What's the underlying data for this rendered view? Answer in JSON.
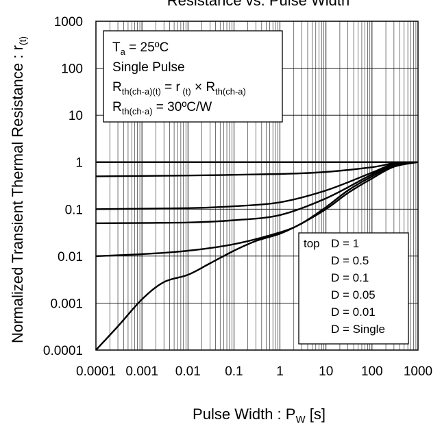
{
  "chart_data": {
    "type": "line",
    "title": "Resistance vs. Pulse Width",
    "xlabel": "Pulse Width : P",
    "xlabel_sub": "W",
    "xlabel_unit": " [s]",
    "ylabel": "Normalized Transient Thermal Resistance : r",
    "ylabel_sub": "(t)",
    "x_scale": "log",
    "y_scale": "log",
    "xlim": [
      0.0001,
      1000
    ],
    "ylim": [
      0.0001,
      1000
    ],
    "grid": "minor log grid",
    "x_tick_labels": [
      "0.0001",
      "0.001",
      "0.01",
      "0.1",
      "1",
      "10",
      "100",
      "1000"
    ],
    "x_tick_values": [
      0.0001,
      0.001,
      0.01,
      0.1,
      1,
      10,
      100,
      1000
    ],
    "y_tick_labels": [
      "0.0001",
      "0.001",
      "0.01",
      "0.1",
      "1",
      "10",
      "100",
      "1000"
    ],
    "y_tick_values": [
      0.0001,
      0.001,
      0.01,
      0.1,
      1,
      10,
      100,
      1000
    ],
    "conditions": {
      "ta_main": "T",
      "ta_sub": "a",
      "ta_rest": " = 25ºC",
      "pulse": "Single Pulse",
      "formula_r_main": "R",
      "formula_r_sub": "th(ch-a)(t)",
      "formula_mid": " =  r",
      "formula_t_sub": " (t)",
      "formula_times": " × R",
      "formula_r2_sub": "th(ch-a)",
      "rth_main": "R",
      "rth_sub": "th(ch-a)",
      "rth_rest": " = 30ºC/W"
    },
    "legend": {
      "position": "bottom-right",
      "top_label": "top",
      "entries": [
        "D = 1",
        "D = 0.5",
        "D = 0.1",
        "D = 0.05",
        "D = 0.01",
        "D = Single"
      ]
    },
    "series": [
      {
        "name": "D = 1",
        "x": [
          0.0001,
          1000
        ],
        "y": [
          1,
          1
        ]
      },
      {
        "name": "D = 0.5",
        "x": [
          0.0001,
          0.01,
          1,
          10,
          100,
          300,
          1000
        ],
        "y": [
          0.5,
          0.52,
          0.56,
          0.62,
          0.78,
          0.95,
          1
        ]
      },
      {
        "name": "D = 0.1",
        "x": [
          0.0001,
          0.01,
          0.1,
          1,
          10,
          100,
          300,
          1000
        ],
        "y": [
          0.1,
          0.105,
          0.115,
          0.14,
          0.25,
          0.6,
          0.92,
          1
        ]
      },
      {
        "name": "D = 0.05",
        "x": [
          0.0001,
          0.01,
          0.1,
          1,
          10,
          100,
          300,
          1000
        ],
        "y": [
          0.05,
          0.052,
          0.058,
          0.075,
          0.17,
          0.55,
          0.9,
          1
        ]
      },
      {
        "name": "D = 0.01",
        "x": [
          0.0001,
          0.001,
          0.01,
          0.1,
          1,
          3,
          10,
          30,
          100,
          300,
          1000
        ],
        "y": [
          0.01,
          0.011,
          0.013,
          0.018,
          0.032,
          0.05,
          0.11,
          0.25,
          0.5,
          0.85,
          1
        ]
      },
      {
        "name": "D = Single",
        "x": [
          0.0001,
          0.0003,
          0.001,
          0.003,
          0.01,
          0.03,
          0.1,
          0.3,
          1,
          3,
          10,
          30,
          100,
          300,
          1000
        ],
        "y": [
          0.0001,
          0.00032,
          0.0012,
          0.0028,
          0.004,
          0.007,
          0.013,
          0.021,
          0.03,
          0.05,
          0.1,
          0.22,
          0.45,
          0.8,
          1
        ]
      }
    ]
  }
}
